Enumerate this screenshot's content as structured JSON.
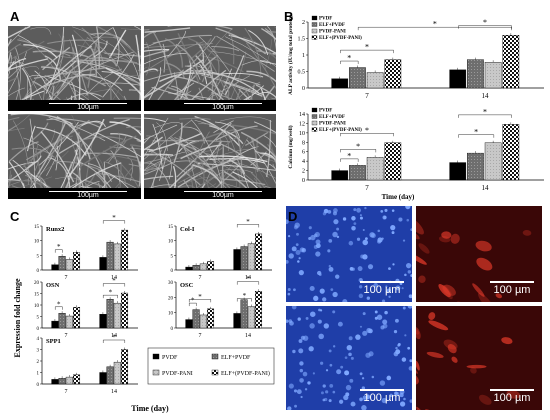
{
  "panel_letters": {
    "a": "A",
    "b": "B",
    "c": "C",
    "d": "D"
  },
  "sem_scale": [
    "100µm",
    "100µm",
    "100µm",
    "100µm"
  ],
  "fluor_scale": [
    "100 µm",
    "100 µm",
    "100 µm",
    "100 µm"
  ],
  "colors": {
    "blue_stain": "#1f3ea8",
    "red_stain": "#b21818"
  },
  "panel_b": {
    "x_label": "Time (day)",
    "legend": [
      "PVDF",
      "ELF+PVDF",
      "PVDF-PANI",
      "ELF+(PVDF-PANI)"
    ],
    "sig_mark": "*"
  },
  "panel_c": {
    "y_label": "Expression fold change",
    "x_label": "Time (day)",
    "legend": [
      "PVDF",
      "ELF+PVDF",
      "PVDF-PANI",
      "ELF+(PVDF-PANI)"
    ],
    "sig_mark": "*"
  },
  "chart_data": [
    {
      "type": "bar",
      "title": "",
      "ylabel": "ALP activity (IU/mg total protein)",
      "xlabel": "Time (day)",
      "categories": [
        "7",
        "14"
      ],
      "ylim": [
        0,
        2
      ],
      "yticks": [
        "0",
        "0.5",
        "1",
        "1.5",
        "2"
      ],
      "series": [
        {
          "name": "PVDF",
          "values": [
            0.28,
            0.55
          ]
        },
        {
          "name": "ELF+PVDF",
          "values": [
            0.62,
            0.86
          ]
        },
        {
          "name": "PVDF-PANI",
          "values": [
            0.47,
            0.78
          ]
        },
        {
          "name": "ELF+(PVDF-PANI)",
          "values": [
            0.86,
            1.6
          ]
        }
      ]
    },
    {
      "type": "bar",
      "title": "",
      "ylabel": "Calcium (mg/well)",
      "xlabel": "Time (day)",
      "categories": [
        "7",
        "14"
      ],
      "ylim": [
        0,
        14
      ],
      "yticks": [
        "0",
        "2",
        "4",
        "6",
        "8",
        "10",
        "12",
        "14"
      ],
      "series": [
        {
          "name": "PVDF",
          "values": [
            2.0,
            3.7
          ]
        },
        {
          "name": "ELF+PVDF",
          "values": [
            3.1,
            5.7
          ]
        },
        {
          "name": "PVDF-PANI",
          "values": [
            4.8,
            7.9
          ]
        },
        {
          "name": "ELF+(PVDF-PANI)",
          "values": [
            7.9,
            11.8
          ]
        }
      ]
    },
    {
      "type": "bar",
      "title": "Runx2",
      "categories": [
        "7",
        "14"
      ],
      "ylim": [
        0,
        15
      ],
      "yticks": [
        "0",
        "5",
        "10",
        "15"
      ],
      "series": [
        {
          "name": "PVDF",
          "values": [
            1.8,
            4.3
          ]
        },
        {
          "name": "ELF+PVDF",
          "values": [
            4.7,
            9.5
          ]
        },
        {
          "name": "PVDF-PANI",
          "values": [
            3.6,
            8.9
          ]
        },
        {
          "name": "ELF+(PVDF-PANI)",
          "values": [
            6.0,
            13.6
          ]
        }
      ]
    },
    {
      "type": "bar",
      "title": "Col-I",
      "categories": [
        "7",
        "14"
      ],
      "ylim": [
        0,
        15
      ],
      "yticks": [
        "0",
        "5",
        "10",
        "15"
      ],
      "series": [
        {
          "name": "PVDF",
          "values": [
            1.0,
            7.0
          ]
        },
        {
          "name": "ELF+PVDF",
          "values": [
            1.6,
            8.0
          ]
        },
        {
          "name": "PVDF-PANI",
          "values": [
            2.1,
            9.0
          ]
        },
        {
          "name": "ELF+(PVDF-PANI)",
          "values": [
            2.9,
            12.3
          ]
        }
      ]
    },
    {
      "type": "bar",
      "title": "OSN",
      "categories": [
        "7",
        "14"
      ],
      "ylim": [
        0,
        20
      ],
      "yticks": [
        "0",
        "5",
        "10",
        "15",
        "20"
      ],
      "series": [
        {
          "name": "PVDF",
          "values": [
            3.0,
            6.0
          ]
        },
        {
          "name": "ELF+PVDF",
          "values": [
            6.4,
            12.5
          ]
        },
        {
          "name": "PVDF-PANI",
          "values": [
            5.2,
            10.8
          ]
        },
        {
          "name": "ELF+(PVDF-PANI)",
          "values": [
            9.0,
            15.2
          ]
        }
      ]
    },
    {
      "type": "bar",
      "title": "OSC",
      "categories": [
        "7",
        "14"
      ],
      "ylim": [
        0,
        30
      ],
      "yticks": [
        "0",
        "10",
        "20",
        "30"
      ],
      "series": [
        {
          "name": "PVDF",
          "values": [
            5.5,
            9.5
          ]
        },
        {
          "name": "ELF+PVDF",
          "values": [
            12.0,
            18.5
          ]
        },
        {
          "name": "PVDF-PANI",
          "values": [
            8.5,
            14.0
          ]
        },
        {
          "name": "ELF+(PVDF-PANI)",
          "values": [
            12.5,
            24.0
          ]
        }
      ]
    },
    {
      "type": "bar",
      "title": "SPP1",
      "xlabel": "Time (day)",
      "categories": [
        "7",
        "14"
      ],
      "ylim": [
        0,
        4
      ],
      "yticks": [
        "0",
        "1",
        "2",
        "3",
        "4"
      ],
      "series": [
        {
          "name": "PVDF",
          "values": [
            0.4,
            1.0
          ]
        },
        {
          "name": "ELF+PVDF",
          "values": [
            0.5,
            1.5
          ]
        },
        {
          "name": "PVDF-PANI",
          "values": [
            0.6,
            1.9
          ]
        },
        {
          "name": "ELF+(PVDF-PANI)",
          "values": [
            0.8,
            3.0
          ]
        }
      ]
    }
  ]
}
